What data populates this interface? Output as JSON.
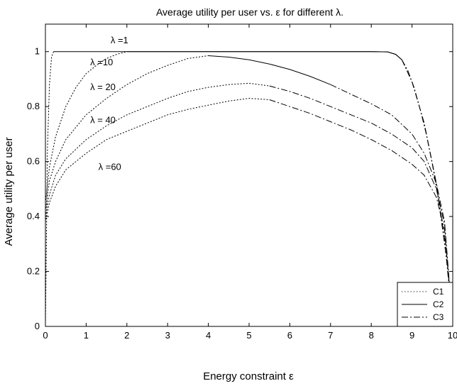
{
  "chart_data": {
    "type": "line",
    "title": "Average utility per user vs.    ε for different  λ.",
    "xlabel": "Energy constraint   ε",
    "ylabel": "Average utility per user",
    "xlim": [
      0,
      10
    ],
    "ylim": [
      0,
      1.1
    ],
    "xticks": [
      0,
      1,
      2,
      3,
      4,
      5,
      6,
      7,
      8,
      9,
      10
    ],
    "yticks": [
      0,
      0.2,
      0.4,
      0.6,
      0.8,
      1
    ],
    "grid": false,
    "legend_position": "bottom-right",
    "legend": [
      {
        "label": "C1",
        "style": "dotted"
      },
      {
        "label": "C2",
        "style": "solid"
      },
      {
        "label": "C3",
        "style": "dashdot"
      }
    ],
    "annotations": [
      {
        "text": "λ =1",
        "x": 1.6,
        "y": 1.04
      },
      {
        "text": "λ =10",
        "x": 1.1,
        "y": 0.96
      },
      {
        "text": "λ = 20",
        "x": 1.1,
        "y": 0.87
      },
      {
        "text": "λ = 40",
        "x": 1.1,
        "y": 0.75
      },
      {
        "text": "λ =60",
        "x": 1.3,
        "y": 0.58
      }
    ],
    "series": [
      {
        "lambda": "1",
        "segments": [
          {
            "style": "dotted",
            "points": [
              [
                0.0,
                0.0
              ],
              [
                0.05,
                0.65
              ],
              [
                0.1,
                0.88
              ],
              [
                0.15,
                0.98
              ],
              [
                0.2,
                1.0
              ]
            ]
          },
          {
            "style": "solid",
            "points": [
              [
                0.2,
                1.0
              ],
              [
                2.0,
                1.0
              ],
              [
                4.0,
                1.0
              ],
              [
                6.0,
                1.0
              ],
              [
                8.0,
                1.0
              ],
              [
                8.4,
                0.999
              ],
              [
                8.6,
                0.99
              ],
              [
                8.75,
                0.97
              ]
            ]
          },
          {
            "style": "dashdot",
            "points": [
              [
                8.75,
                0.97
              ],
              [
                8.9,
                0.93
              ],
              [
                9.05,
                0.87
              ],
              [
                9.2,
                0.79
              ],
              [
                9.35,
                0.7
              ],
              [
                9.5,
                0.59
              ],
              [
                9.65,
                0.46
              ],
              [
                9.8,
                0.3
              ],
              [
                9.9,
                0.18
              ],
              [
                9.95,
                0.08
              ],
              [
                10.0,
                0.0
              ]
            ]
          }
        ]
      },
      {
        "lambda": "10",
        "segments": [
          {
            "style": "dotted",
            "points": [
              [
                0.0,
                0.45
              ],
              [
                0.1,
                0.58
              ],
              [
                0.25,
                0.69
              ],
              [
                0.5,
                0.8
              ],
              [
                0.75,
                0.87
              ],
              [
                1.0,
                0.92
              ],
              [
                1.25,
                0.95
              ],
              [
                1.5,
                0.975
              ],
              [
                1.75,
                0.99
              ],
              [
                2.0,
                1.0
              ]
            ]
          },
          {
            "style": "solid",
            "points": [
              [
                2.0,
                1.0
              ],
              [
                4.0,
                1.0
              ],
              [
                6.0,
                1.0
              ],
              [
                8.0,
                1.0
              ],
              [
                8.4,
                0.999
              ],
              [
                8.6,
                0.99
              ],
              [
                8.75,
                0.97
              ]
            ]
          },
          {
            "style": "dashdot",
            "points": [
              [
                8.75,
                0.97
              ],
              [
                9.0,
                0.89
              ],
              [
                9.3,
                0.74
              ],
              [
                9.6,
                0.52
              ],
              [
                9.8,
                0.32
              ],
              [
                10.0,
                0.0
              ]
            ]
          }
        ]
      },
      {
        "lambda": "20",
        "segments": [
          {
            "style": "dotted",
            "points": [
              [
                0.0,
                0.42
              ],
              [
                0.1,
                0.53
              ],
              [
                0.25,
                0.6
              ],
              [
                0.5,
                0.68
              ],
              [
                1.0,
                0.77
              ],
              [
                1.5,
                0.83
              ],
              [
                2.0,
                0.88
              ],
              [
                2.5,
                0.92
              ],
              [
                3.0,
                0.95
              ],
              [
                3.5,
                0.975
              ],
              [
                4.0,
                0.985
              ]
            ]
          },
          {
            "style": "solid",
            "points": [
              [
                4.0,
                0.985
              ],
              [
                4.5,
                0.98
              ],
              [
                5.0,
                0.97
              ],
              [
                5.5,
                0.955
              ],
              [
                6.0,
                0.935
              ],
              [
                6.5,
                0.91
              ],
              [
                7.0,
                0.88
              ]
            ]
          },
          {
            "style": "dashdot",
            "points": [
              [
                7.0,
                0.88
              ],
              [
                7.5,
                0.845
              ],
              [
                8.0,
                0.81
              ],
              [
                8.5,
                0.77
              ],
              [
                9.0,
                0.7
              ],
              [
                9.3,
                0.63
              ],
              [
                9.6,
                0.52
              ],
              [
                9.8,
                0.38
              ],
              [
                10.0,
                0.0
              ]
            ]
          }
        ]
      },
      {
        "lambda": "40",
        "segments": [
          {
            "style": "dotted",
            "points": [
              [
                0.0,
                0.4
              ],
              [
                0.1,
                0.48
              ],
              [
                0.25,
                0.55
              ],
              [
                0.5,
                0.61
              ],
              [
                1.0,
                0.68
              ],
              [
                1.5,
                0.73
              ],
              [
                2.0,
                0.77
              ],
              [
                2.5,
                0.8
              ],
              [
                3.0,
                0.83
              ],
              [
                3.5,
                0.855
              ],
              [
                4.0,
                0.87
              ],
              [
                4.5,
                0.88
              ],
              [
                5.0,
                0.885
              ],
              [
                5.5,
                0.875
              ]
            ]
          },
          {
            "style": "dashdot",
            "points": [
              [
                5.5,
                0.875
              ],
              [
                6.0,
                0.855
              ],
              [
                6.5,
                0.83
              ],
              [
                7.0,
                0.8
              ],
              [
                7.5,
                0.77
              ],
              [
                8.0,
                0.74
              ],
              [
                8.5,
                0.7
              ],
              [
                9.0,
                0.65
              ],
              [
                9.3,
                0.6
              ],
              [
                9.6,
                0.5
              ],
              [
                9.8,
                0.37
              ],
              [
                10.0,
                0.0
              ]
            ]
          }
        ]
      },
      {
        "lambda": "60",
        "segments": [
          {
            "style": "dotted",
            "points": [
              [
                0.0,
                0.38
              ],
              [
                0.1,
                0.45
              ],
              [
                0.25,
                0.51
              ],
              [
                0.5,
                0.57
              ],
              [
                1.0,
                0.63
              ],
              [
                1.5,
                0.68
              ],
              [
                2.0,
                0.71
              ],
              [
                2.5,
                0.74
              ],
              [
                3.0,
                0.77
              ],
              [
                3.5,
                0.79
              ],
              [
                4.0,
                0.805
              ],
              [
                4.5,
                0.82
              ],
              [
                5.0,
                0.83
              ],
              [
                5.5,
                0.825
              ]
            ]
          },
          {
            "style": "dashdot",
            "points": [
              [
                5.5,
                0.825
              ],
              [
                6.0,
                0.8
              ],
              [
                6.5,
                0.775
              ],
              [
                7.0,
                0.745
              ],
              [
                7.5,
                0.715
              ],
              [
                8.0,
                0.68
              ],
              [
                8.5,
                0.64
              ],
              [
                9.0,
                0.59
              ],
              [
                9.3,
                0.55
              ],
              [
                9.6,
                0.47
              ],
              [
                9.8,
                0.35
              ],
              [
                10.0,
                0.0
              ]
            ]
          }
        ]
      }
    ]
  }
}
